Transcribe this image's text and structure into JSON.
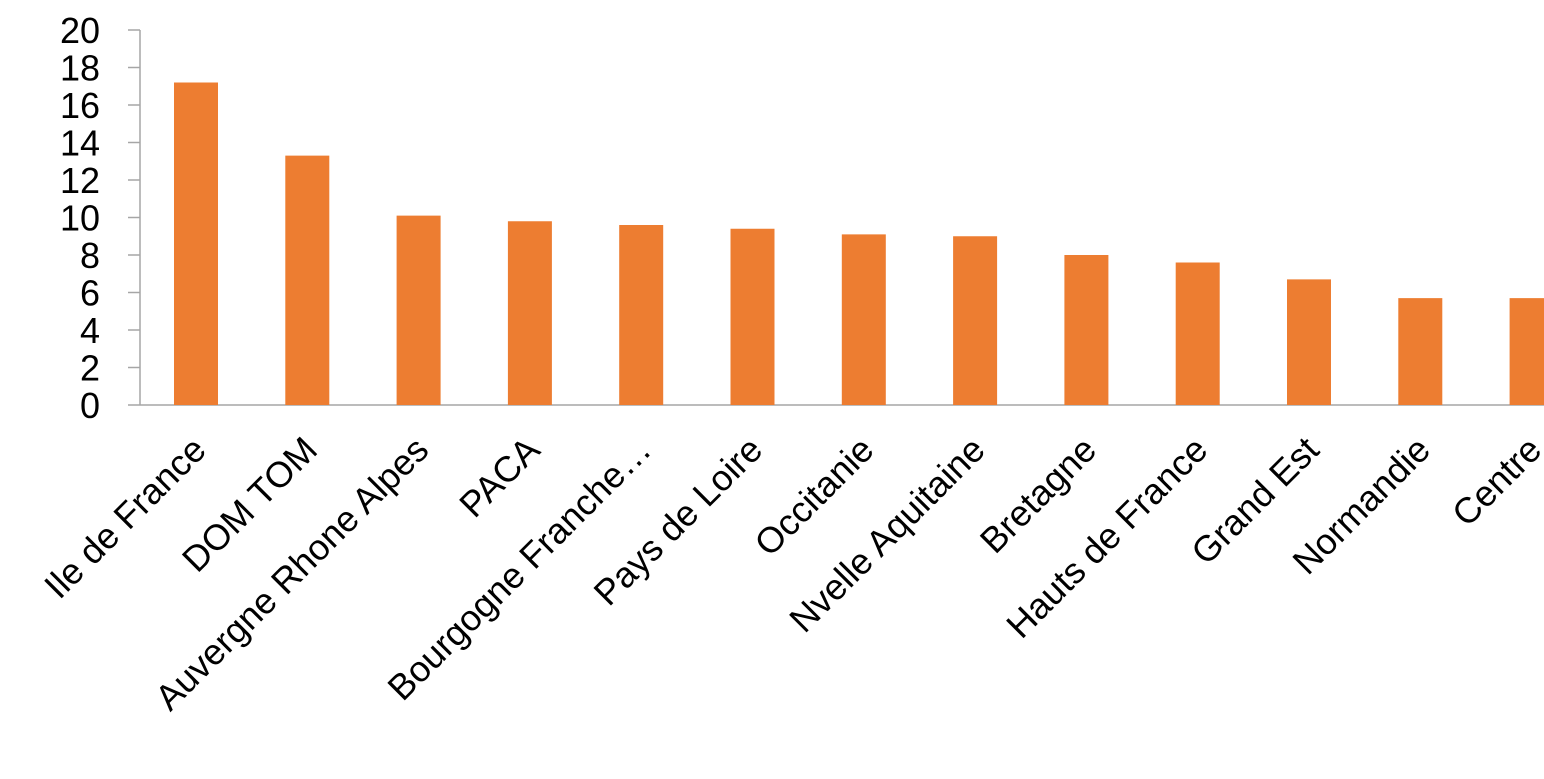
{
  "colors": {
    "bar": "#ed7d31",
    "axis": "#a6a6a6",
    "text": "#000000"
  },
  "chart_data": {
    "type": "bar",
    "title": "",
    "xlabel": "",
    "ylabel": "",
    "ylim": [
      0,
      20
    ],
    "yticks": [
      0,
      2,
      4,
      6,
      8,
      10,
      12,
      14,
      16,
      18,
      20
    ],
    "grid": false,
    "legend": "none",
    "categories": [
      "Ile de France",
      "DOM TOM",
      "Auvergne Rhone Alpes",
      "PACA",
      "Bourgogne Franche…",
      "Pays de  Loire",
      "Occitanie",
      "Nvelle Aquitaine",
      "Bretagne",
      "Hauts de France",
      "Grand Est",
      "Normandie",
      "Centre"
    ],
    "values": [
      17.2,
      13.3,
      10.1,
      9.8,
      9.6,
      9.4,
      9.1,
      9.0,
      8.0,
      7.6,
      6.7,
      5.7,
      5.7
    ]
  }
}
